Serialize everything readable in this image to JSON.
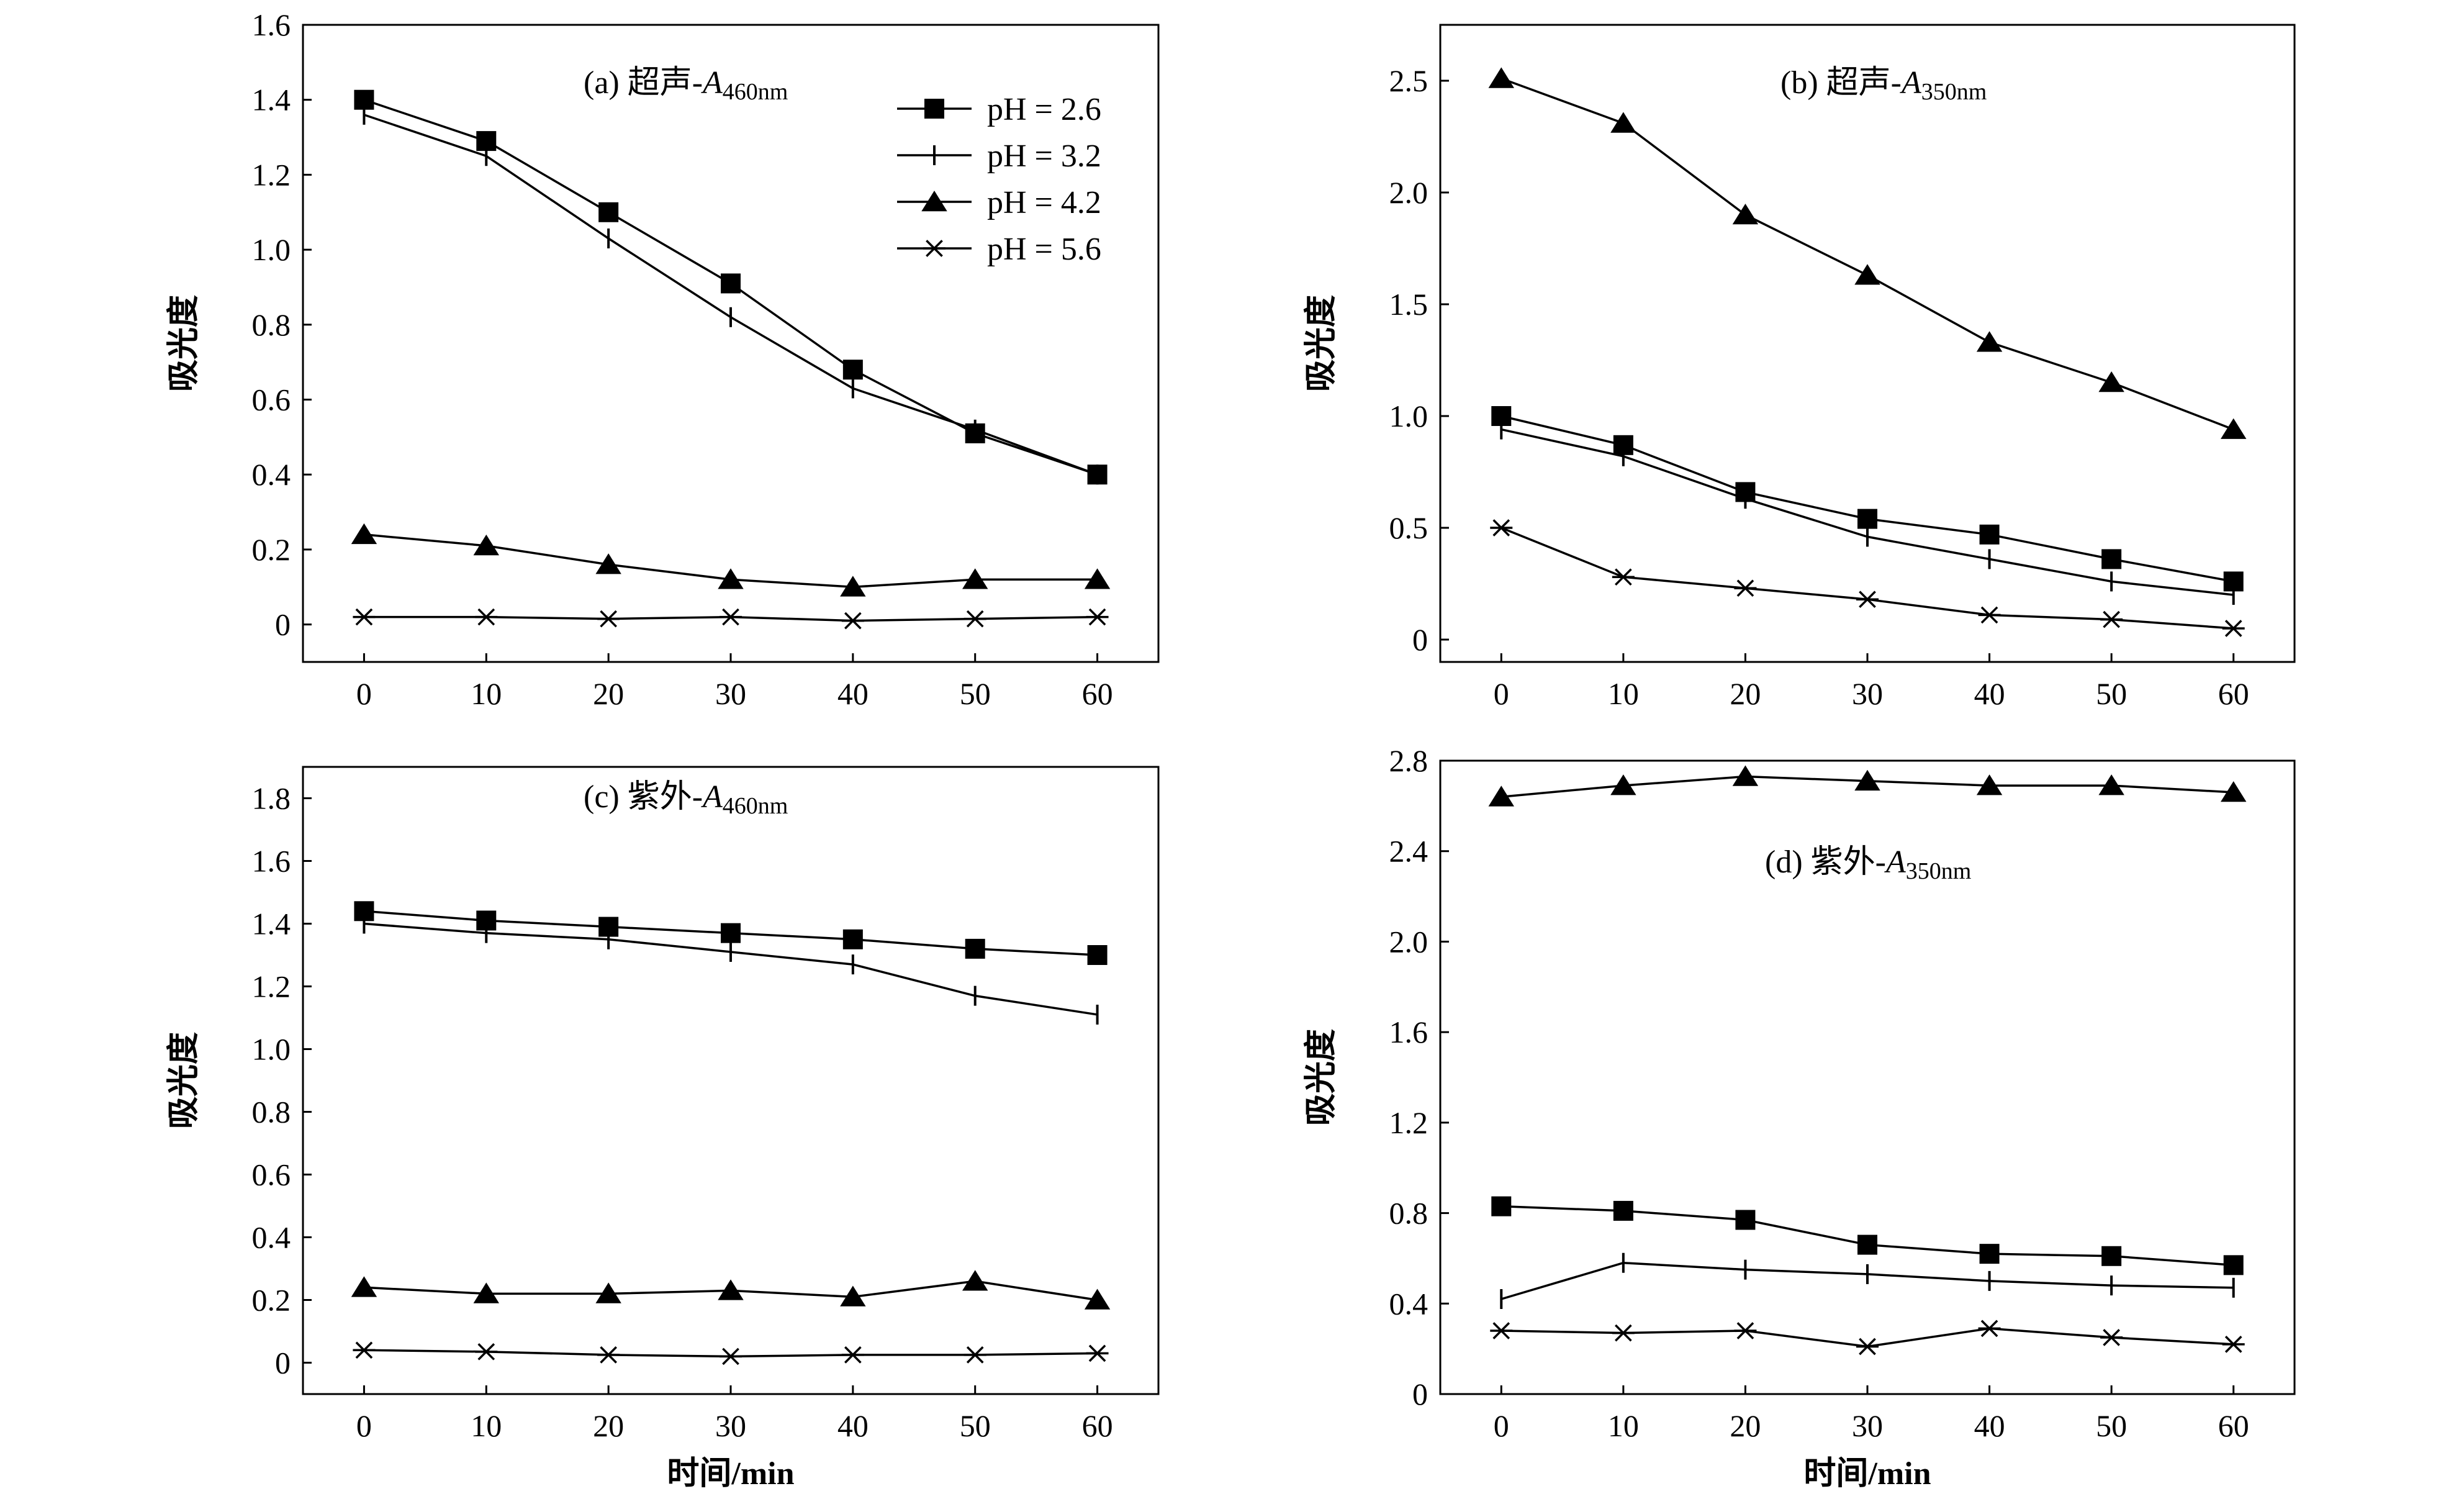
{
  "chart_data": [
    {
      "id": "a",
      "type": "line",
      "title": "(a) 超声-A",
      "title_sub": "460nm",
      "xlabel": "",
      "ylabel": "吸光度",
      "x": [
        0,
        10,
        20,
        30,
        40,
        50,
        60
      ],
      "xticks": [
        "0",
        "10",
        "20",
        "30",
        "40",
        "50",
        "60"
      ],
      "ylim": [
        -0.1,
        1.6
      ],
      "yticks": [
        "0",
        "0.2",
        "0.4",
        "0.6",
        "0.8",
        "1.0",
        "1.2",
        "1.4",
        "1.6"
      ],
      "legend": true,
      "series": [
        {
          "name": "pH = 2.6",
          "marker": "square",
          "values": [
            1.4,
            1.29,
            1.1,
            0.91,
            0.68,
            0.51,
            0.4
          ]
        },
        {
          "name": "pH = 3.2",
          "marker": "plus",
          "values": [
            1.36,
            1.25,
            1.03,
            0.82,
            0.63,
            0.52,
            0.4
          ]
        },
        {
          "name": "pH = 4.2",
          "marker": "triangle",
          "values": [
            0.24,
            0.21,
            0.16,
            0.12,
            0.1,
            0.12,
            0.12
          ]
        },
        {
          "name": "pH = 5.6",
          "marker": "asterisk",
          "values": [
            0.02,
            0.02,
            0.015,
            0.02,
            0.01,
            0.015,
            0.02
          ]
        }
      ]
    },
    {
      "id": "b",
      "type": "line",
      "title": "(b) 超声-A",
      "title_sub": "350nm",
      "xlabel": "",
      "ylabel": "吸光度",
      "x": [
        0,
        10,
        20,
        30,
        40,
        50,
        60
      ],
      "xticks": [
        "0",
        "10",
        "20",
        "30",
        "40",
        "50",
        "60"
      ],
      "ylim": [
        -0.1,
        2.75
      ],
      "yticks": [
        "0",
        "0.5",
        "1.0",
        "1.5",
        "2.0",
        "2.5"
      ],
      "legend": false,
      "series": [
        {
          "name": "pH = 2.6",
          "marker": "square",
          "values": [
            1.0,
            0.87,
            0.66,
            0.54,
            0.47,
            0.36,
            0.26
          ]
        },
        {
          "name": "pH = 3.2",
          "marker": "plus",
          "values": [
            0.94,
            0.82,
            0.63,
            0.46,
            0.36,
            0.26,
            0.2
          ]
        },
        {
          "name": "pH = 4.2",
          "marker": "triangle",
          "values": [
            2.51,
            2.31,
            1.9,
            1.63,
            1.33,
            1.15,
            0.94
          ]
        },
        {
          "name": "pH = 5.6",
          "marker": "asterisk",
          "values": [
            0.5,
            0.28,
            0.23,
            0.18,
            0.11,
            0.09,
            0.05
          ]
        }
      ]
    },
    {
      "id": "c",
      "type": "line",
      "title": "(c) 紫外-A",
      "title_sub": "460nm",
      "xlabel": "时间/min",
      "ylabel": "吸光度",
      "x": [
        0,
        10,
        20,
        30,
        40,
        50,
        60
      ],
      "xticks": [
        "0",
        "10",
        "20",
        "30",
        "40",
        "50",
        "60"
      ],
      "ylim": [
        -0.1,
        1.9
      ],
      "yticks": [
        "0",
        "0.2",
        "0.4",
        "0.6",
        "0.8",
        "1.0",
        "1.2",
        "1.4",
        "1.6",
        "1.8"
      ],
      "legend": false,
      "series": [
        {
          "name": "pH = 2.6",
          "marker": "square",
          "values": [
            1.44,
            1.41,
            1.39,
            1.37,
            1.35,
            1.32,
            1.3
          ]
        },
        {
          "name": "pH = 3.2",
          "marker": "plus",
          "values": [
            1.4,
            1.37,
            1.35,
            1.31,
            1.27,
            1.17,
            1.11
          ]
        },
        {
          "name": "pH = 4.2",
          "marker": "triangle",
          "values": [
            0.24,
            0.22,
            0.22,
            0.23,
            0.21,
            0.26,
            0.2
          ]
        },
        {
          "name": "pH = 5.6",
          "marker": "asterisk",
          "values": [
            0.04,
            0.035,
            0.025,
            0.02,
            0.025,
            0.025,
            0.03
          ]
        }
      ]
    },
    {
      "id": "d",
      "type": "line",
      "title": "(d) 紫外-A",
      "title_sub": "350nm",
      "xlabel": "时间/min",
      "ylabel": "吸光度",
      "x": [
        0,
        10,
        20,
        30,
        40,
        50,
        60
      ],
      "xticks": [
        "0",
        "10",
        "20",
        "30",
        "40",
        "50",
        "60"
      ],
      "ylim": [
        0,
        2.8
      ],
      "yticks": [
        "0",
        "0.4",
        "0.8",
        "1.2",
        "1.6",
        "2.0",
        "2.4",
        "2.8"
      ],
      "legend": false,
      "series": [
        {
          "name": "pH = 2.6",
          "marker": "square",
          "values": [
            0.83,
            0.81,
            0.77,
            0.66,
            0.62,
            0.61,
            0.57
          ]
        },
        {
          "name": "pH = 3.2",
          "marker": "plus",
          "values": [
            0.42,
            0.58,
            0.55,
            0.53,
            0.5,
            0.48,
            0.47
          ]
        },
        {
          "name": "pH = 4.2",
          "marker": "triangle",
          "values": [
            2.64,
            2.69,
            2.73,
            2.71,
            2.69,
            2.69,
            2.66
          ]
        },
        {
          "name": "pH = 5.6",
          "marker": "asterisk",
          "values": [
            0.28,
            0.27,
            0.28,
            0.21,
            0.29,
            0.25,
            0.22
          ]
        }
      ]
    }
  ]
}
